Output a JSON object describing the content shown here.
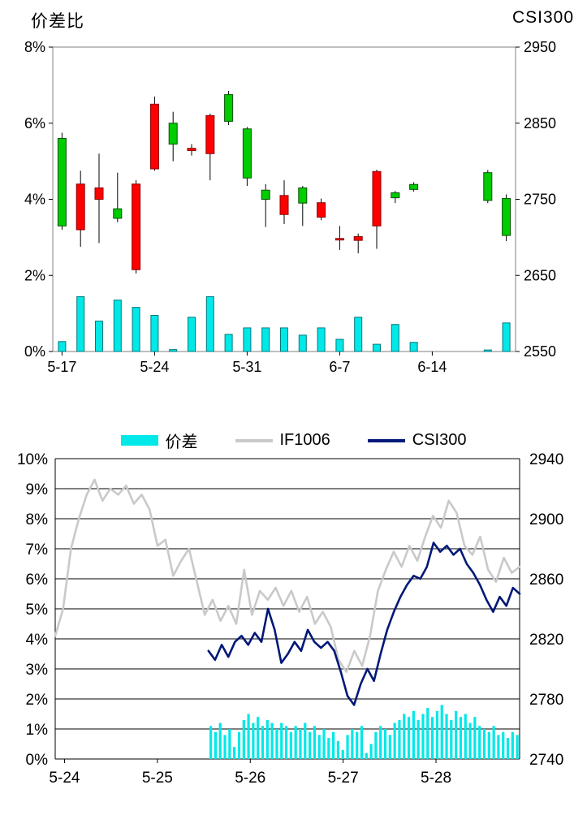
{
  "chart_data": [
    {
      "type": "candlestick",
      "title_left": "价差比",
      "title_right": "CSI300",
      "axis_left": {
        "label": "价差比",
        "ticks": [
          "0%",
          "2%",
          "4%",
          "6%",
          "8%"
        ],
        "values": [
          0,
          2,
          4,
          6,
          8
        ],
        "range": [
          0,
          8
        ]
      },
      "axis_right": {
        "label": "CSI300",
        "ticks": [
          "2550",
          "2650",
          "2750",
          "2850",
          "2950"
        ],
        "range": [
          2550,
          2950
        ]
      },
      "x_ticks": [
        {
          "label": "5-17",
          "slot": 0
        },
        {
          "label": "5-24",
          "slot": 5
        },
        {
          "label": "5-31",
          "slot": 10
        },
        {
          "label": "6-7",
          "slot": 15
        },
        {
          "label": "6-14",
          "slot": 20
        }
      ],
      "slots": 25,
      "up_color": "#FF0000",
      "down_color": "#00CC00",
      "bar_color": "#00E8E8",
      "candles": [
        [
          0,
          5.6,
          5.75,
          3.2,
          3.3
        ],
        [
          1,
          3.2,
          4.75,
          2.75,
          4.4
        ],
        [
          2,
          4.0,
          5.2,
          2.85,
          4.3
        ],
        [
          3,
          3.75,
          4.7,
          3.4,
          3.5
        ],
        [
          4,
          2.15,
          4.5,
          2.05,
          4.4
        ],
        [
          5,
          4.8,
          6.7,
          4.75,
          6.5
        ],
        [
          6,
          6.0,
          6.3,
          5.0,
          5.45
        ],
        [
          7,
          5.28,
          5.45,
          5.15,
          5.34
        ],
        [
          8,
          5.2,
          6.25,
          4.5,
          6.2
        ],
        [
          9,
          6.75,
          6.85,
          5.95,
          6.05
        ],
        [
          10,
          5.85,
          5.9,
          4.35,
          4.56
        ],
        [
          11,
          4.24,
          4.4,
          3.27,
          4.0
        ],
        [
          12,
          3.6,
          4.5,
          3.35,
          4.1
        ],
        [
          13,
          4.3,
          4.35,
          3.3,
          3.9
        ],
        [
          14,
          3.53,
          4.02,
          3.45,
          3.91
        ],
        [
          15,
          2.93,
          3.3,
          2.67,
          2.97
        ],
        [
          16,
          2.92,
          3.1,
          2.58,
          3.02
        ],
        [
          17,
          3.3,
          4.78,
          2.7,
          4.73
        ],
        [
          18,
          4.17,
          4.22,
          3.9,
          4.04
        ],
        [
          19,
          4.39,
          4.45,
          4.2,
          4.26
        ],
        [
          23,
          4.7,
          4.77,
          3.9,
          3.97
        ],
        [
          24,
          4.02,
          4.13,
          2.9,
          3.05
        ]
      ],
      "volume_bars": [
        [
          0,
          0.26
        ],
        [
          1,
          1.44
        ],
        [
          2,
          0.8
        ],
        [
          3,
          1.35
        ],
        [
          4,
          1.16
        ],
        [
          5,
          0.95
        ],
        [
          6,
          0.05
        ],
        [
          7,
          0.9
        ],
        [
          8,
          1.44
        ],
        [
          9,
          0.45
        ],
        [
          10,
          0.62
        ],
        [
          11,
          0.62
        ],
        [
          12,
          0.62
        ],
        [
          13,
          0.43
        ],
        [
          14,
          0.62
        ],
        [
          15,
          0.32
        ],
        [
          16,
          0.9
        ],
        [
          17,
          0.19
        ],
        [
          18,
          0.71
        ],
        [
          19,
          0.24
        ],
        [
          23,
          0.04
        ],
        [
          24,
          0.75
        ]
      ]
    },
    {
      "type": "line+bar",
      "axis_left": {
        "ticks": [
          "0%",
          "1%",
          "2%",
          "3%",
          "4%",
          "5%",
          "6%",
          "7%",
          "8%",
          "9%",
          "10%"
        ],
        "values": [
          0,
          1,
          2,
          3,
          4,
          5,
          6,
          7,
          8,
          9,
          10
        ],
        "range": [
          0,
          10
        ]
      },
      "axis_right": {
        "ticks": [
          "2740",
          "2780",
          "2820",
          "2860",
          "2900",
          "2940"
        ],
        "values": [
          0,
          2,
          4,
          6,
          8,
          10
        ],
        "range": [
          2740,
          2940
        ]
      },
      "x_ticks": [
        {
          "label": "5-24",
          "f": 0.02
        },
        {
          "label": "5-25",
          "f": 0.22
        },
        {
          "label": "5-26",
          "f": 0.42
        },
        {
          "label": "5-27",
          "f": 0.62
        },
        {
          "label": "5-28",
          "f": 0.82
        }
      ],
      "series": [
        {
          "name": "IF1006",
          "color": "#C9C9C9",
          "x_start": 0.0,
          "x_end": 1.0,
          "values": [
            4.1,
            5.0,
            7.0,
            8.0,
            8.8,
            9.3,
            8.6,
            9.0,
            8.8,
            9.1,
            8.5,
            8.8,
            8.3,
            7.1,
            7.3,
            6.1,
            6.6,
            7.0,
            5.9,
            4.8,
            5.3,
            4.6,
            5.1,
            4.5,
            6.3,
            4.8,
            5.6,
            5.3,
            5.7,
            5.1,
            5.6,
            4.9,
            5.4,
            4.5,
            4.9,
            4.4,
            3.3,
            2.9,
            3.6,
            3.1,
            4.1,
            5.6,
            6.3,
            6.9,
            6.4,
            7.1,
            6.6,
            7.4,
            8.1,
            7.7,
            8.6,
            8.2,
            7.1,
            6.8,
            7.4,
            6.3,
            5.9,
            6.7,
            6.2,
            6.4
          ]
        },
        {
          "name": "CSI300",
          "color": "#001878",
          "x_start": 0.33,
          "x_end": 1.0,
          "values": [
            3.6,
            3.3,
            3.8,
            3.4,
            3.9,
            4.1,
            3.8,
            4.2,
            3.9,
            5.0,
            4.3,
            3.2,
            3.5,
            3.9,
            3.6,
            4.3,
            3.9,
            3.7,
            3.9,
            3.6,
            2.9,
            2.1,
            1.8,
            2.5,
            3.0,
            2.6,
            3.5,
            4.3,
            4.9,
            5.4,
            5.8,
            6.1,
            6.0,
            6.4,
            7.2,
            6.9,
            7.1,
            6.8,
            7.0,
            6.5,
            6.2,
            5.8,
            5.3,
            4.9,
            5.4,
            5.1,
            5.7,
            5.5
          ]
        }
      ],
      "bars": {
        "name": "价差",
        "color": "#00E8E8",
        "x_start": 0.335,
        "x_end": 0.995,
        "values": [
          1.1,
          0.9,
          1.2,
          0.8,
          1.0,
          0.4,
          0.9,
          1.3,
          1.5,
          1.2,
          1.4,
          1.1,
          1.3,
          1.2,
          1.0,
          1.2,
          1.1,
          0.9,
          1.1,
          1.0,
          1.2,
          0.9,
          1.1,
          0.8,
          1.0,
          0.7,
          0.9,
          0.6,
          0.3,
          0.8,
          1.0,
          0.9,
          1.1,
          0.2,
          0.5,
          0.9,
          1.1,
          1.0,
          0.8,
          1.2,
          1.3,
          1.5,
          1.4,
          1.6,
          1.3,
          1.5,
          1.7,
          1.4,
          1.6,
          1.8,
          1.5,
          1.3,
          1.6,
          1.4,
          1.5,
          1.2,
          1.4,
          1.1,
          1.0,
          0.9,
          1.1,
          0.8,
          0.9,
          0.7,
          0.9,
          0.8
        ]
      }
    }
  ]
}
